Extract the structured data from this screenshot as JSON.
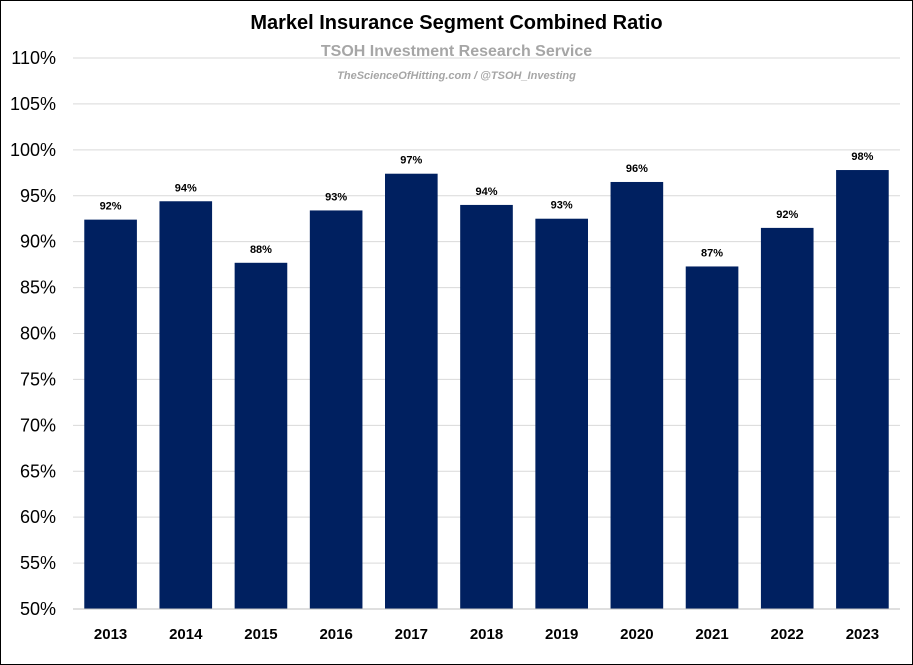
{
  "chart_data": {
    "type": "bar",
    "title": "Markel Insurance Segment Combined Ratio",
    "subtitle": "TSOH Investment Research Service",
    "credit": "TheScienceOfHitting.com / @TSOH_Investing",
    "categories": [
      "2013",
      "2014",
      "2015",
      "2016",
      "2017",
      "2018",
      "2019",
      "2020",
      "2021",
      "2022",
      "2023"
    ],
    "values": [
      92.4,
      94.4,
      87.7,
      93.4,
      97.4,
      94.0,
      92.5,
      96.5,
      87.3,
      91.5,
      97.8
    ],
    "data_labels": [
      "92%",
      "94%",
      "88%",
      "93%",
      "97%",
      "94%",
      "93%",
      "96%",
      "87%",
      "92%",
      "98%"
    ],
    "ylim": [
      50,
      110
    ],
    "yticks": [
      50,
      55,
      60,
      65,
      70,
      75,
      80,
      85,
      90,
      95,
      100,
      105,
      110
    ],
    "ytick_labels": [
      "50%",
      "55%",
      "60%",
      "65%",
      "70%",
      "75%",
      "80%",
      "85%",
      "90%",
      "95%",
      "100%",
      "105%",
      "110%"
    ],
    "grid": true,
    "bar_color": "#002060",
    "grid_color": "#d9d9d9"
  }
}
